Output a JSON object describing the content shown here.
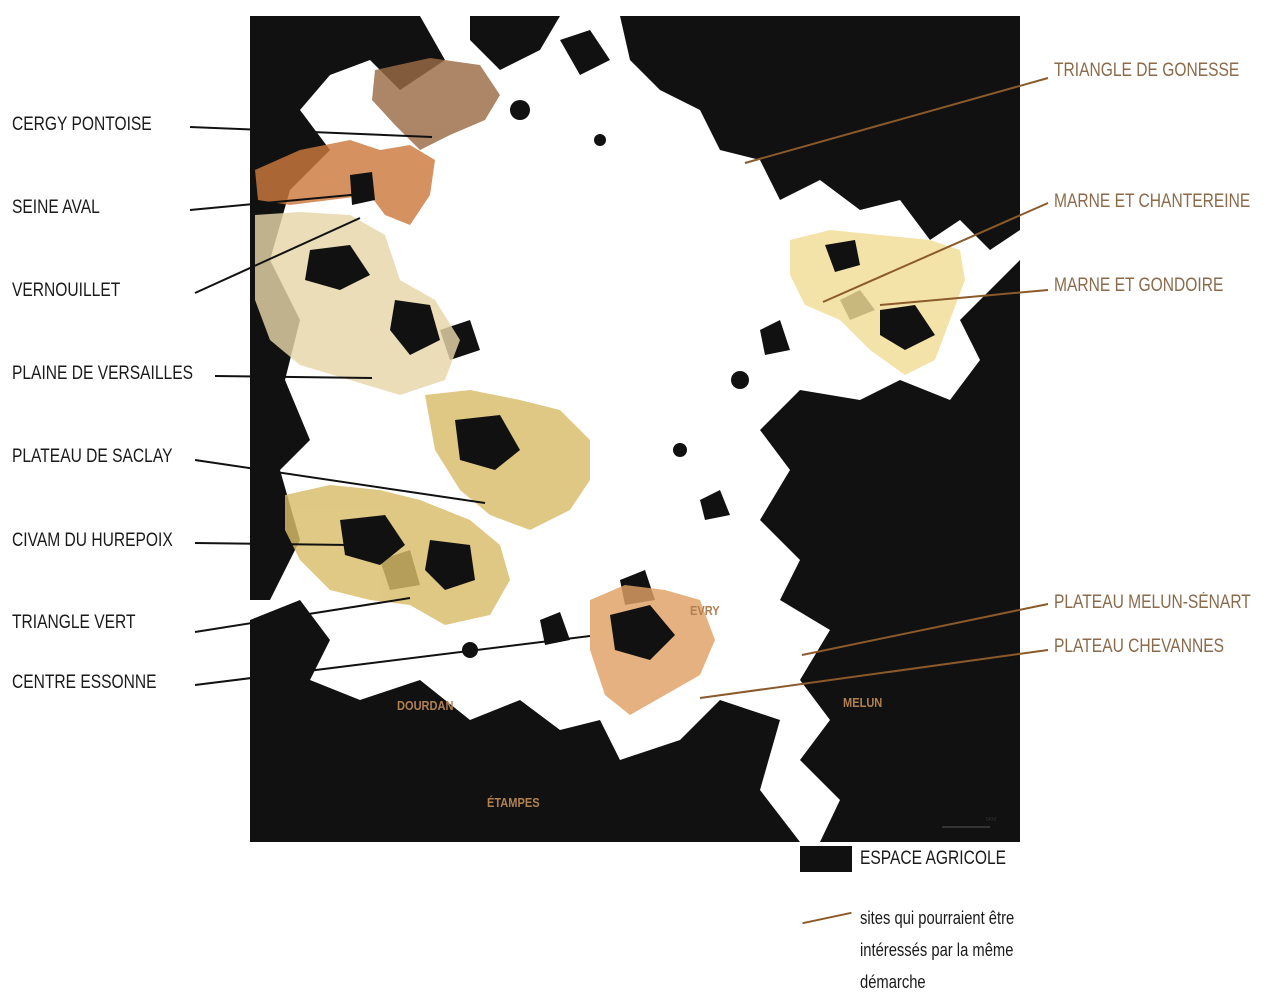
{
  "left_labels": [
    "CERGY PONTOISE",
    "SEINE AVAL",
    "VERNOUILLET",
    "PLAINE DE VERSAILLES",
    "PLATEAU DE SACLAY",
    "CIVAM DU HUREPOIX",
    "TRIANGLE VERT",
    "CENTRE ESSONNE"
  ],
  "right_labels": [
    "TRIANGLE DE GONESSE",
    "MARNE ET CHANTEREINE",
    "MARNE ET GONDOIRE",
    "PLATEAU MELUN-SÉNART",
    "PLATEAU CHEVANNES"
  ],
  "towns": {
    "evry": "EVRY",
    "dourdan": "DOURDAN",
    "melun": "MELUN",
    "etampes": "ÉTAMPES"
  },
  "scale_text": "5KM",
  "legend": {
    "agri": "ESPACE AGRICOLE",
    "sites": "sites qui pourraient être intéressés par la même démarche"
  },
  "colors": {
    "agricultural": "#111111",
    "brown": "#9a6b45",
    "orange": "#cc7a3e",
    "beige": "#e6d6a8",
    "gold": "#d9bd6a",
    "cream": "#f2dd96",
    "peach": "#e0a064",
    "leader_right": "#8b5a2b"
  }
}
